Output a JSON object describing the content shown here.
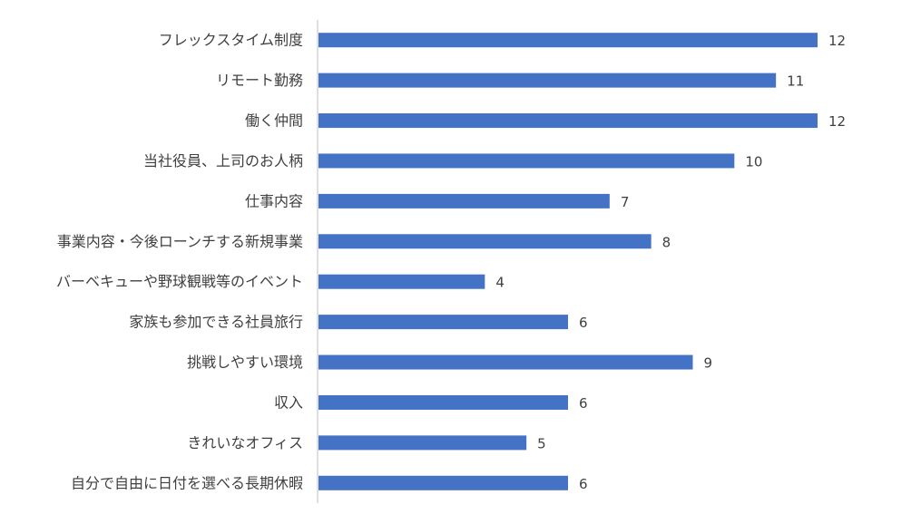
{
  "chart_data": {
    "type": "bar",
    "orientation": "horizontal",
    "categories": [
      "フレックスタイム制度",
      "リモート勤務",
      "働く仲間",
      "当社役員、上司のお人柄",
      "仕事内容",
      "事業内容・今後ローンチする新規事業",
      "バーベキューや野球観戦等のイベント",
      "家族も参加できる社員旅行",
      "挑戦しやすい環境",
      "収入",
      "きれいなオフィス",
      "自分で自由に日付を選べる長期休暇"
    ],
    "values": [
      12,
      11,
      12,
      10,
      7,
      8,
      4,
      6,
      9,
      6,
      5,
      6
    ],
    "data_labels": true,
    "xlim": [
      0,
      12
    ],
    "grid": false,
    "legend": "none",
    "colors": {
      "bar": "#4472C4",
      "axis": "#BFBFBF",
      "text": "#404040"
    }
  }
}
